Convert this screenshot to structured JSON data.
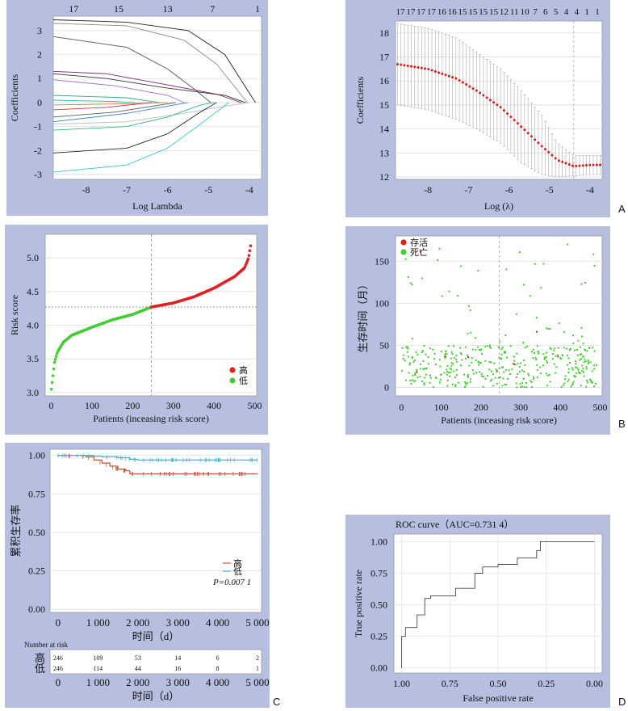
{
  "panel_letters": {
    "a": "A",
    "b": "B",
    "c": "C",
    "d": "D"
  },
  "chart_data": [
    {
      "id": "lasso-path",
      "type": "line",
      "xlabel": "Log Lambda",
      "ylabel": "Coefficients",
      "x_ticks": [
        "-8",
        "-7",
        "-6",
        "-5",
        "-4"
      ],
      "y_ticks": [
        "-3",
        "-2",
        "-1",
        "0",
        "1",
        "2",
        "3"
      ],
      "top_ticks": [
        "17",
        "15",
        "13",
        "7",
        "1"
      ],
      "top_tick_positions": [
        -8.3,
        -7.2,
        -6.0,
        -4.9,
        -3.8
      ],
      "xlim": [
        -8.8,
        -3.7
      ],
      "ylim": [
        -3.2,
        3.6
      ],
      "series": [
        {
          "color": "#222222",
          "values": [
            [
              -8.8,
              3.45
            ],
            [
              -7.0,
              3.35
            ],
            [
              -5.5,
              3.0
            ],
            [
              -4.6,
              2.0
            ],
            [
              -3.85,
              0
            ]
          ]
        },
        {
          "color": "#888888",
          "values": [
            [
              -8.8,
              3.3
            ],
            [
              -7.0,
              3.2
            ],
            [
              -5.6,
              2.6
            ],
            [
              -4.8,
              1.6
            ],
            [
              -4.05,
              0
            ]
          ]
        },
        {
          "color": "#555555",
          "values": [
            [
              -8.8,
              2.75
            ],
            [
              -7.0,
              2.3
            ],
            [
              -6.0,
              1.4
            ],
            [
              -5.3,
              0.5
            ],
            [
              -4.95,
              0
            ]
          ]
        },
        {
          "color": "#7b2a6e",
          "values": [
            [
              -8.8,
              1.3
            ],
            [
              -7.5,
              1.2
            ],
            [
              -6.2,
              0.8
            ],
            [
              -4.8,
              0.35
            ],
            [
              -4.2,
              0
            ]
          ]
        },
        {
          "color": "#333333",
          "values": [
            [
              -8.8,
              1.2
            ],
            [
              -7.5,
              1.0
            ],
            [
              -6.0,
              0.6
            ],
            [
              -4.6,
              0.3
            ],
            [
              -4.1,
              0
            ]
          ]
        },
        {
          "color": "#9f6fc0",
          "values": [
            [
              -8.8,
              0.95
            ],
            [
              -7.3,
              0.7
            ],
            [
              -6.0,
              0.3
            ],
            [
              -5.6,
              0
            ]
          ]
        },
        {
          "color": "#3ea87a",
          "values": [
            [
              -8.8,
              0.3
            ],
            [
              -7.0,
              0.2
            ],
            [
              -6.2,
              0
            ]
          ]
        },
        {
          "color": "#2bb8b8",
          "values": [
            [
              -8.8,
              0.1
            ],
            [
              -7.4,
              0.05
            ],
            [
              -6.8,
              0
            ]
          ]
        },
        {
          "color": "#d08040",
          "values": [
            [
              -8.8,
              -0.1
            ],
            [
              -7.0,
              -0.05
            ],
            [
              -6.0,
              0
            ]
          ]
        },
        {
          "color": "#cc3355",
          "values": [
            [
              -8.8,
              -0.3
            ],
            [
              -7.5,
              -0.2
            ],
            [
              -6.4,
              0
            ]
          ]
        },
        {
          "color": "#5a5a5a",
          "values": [
            [
              -8.8,
              -0.6
            ],
            [
              -7.3,
              -0.4
            ],
            [
              -5.8,
              0
            ]
          ]
        },
        {
          "color": "#3a86c8",
          "values": [
            [
              -8.8,
              -0.8
            ],
            [
              -7.0,
              -0.45
            ],
            [
              -5.5,
              0
            ]
          ]
        },
        {
          "color": "#bbbbbb",
          "values": [
            [
              -8.8,
              -0.9
            ],
            [
              -7.0,
              -0.8
            ],
            [
              -5.8,
              -0.5
            ],
            [
              -4.6,
              -0.15
            ],
            [
              -4.0,
              0
            ]
          ]
        },
        {
          "color": "#2fb59c",
          "values": [
            [
              -8.8,
              -1.15
            ],
            [
              -7.0,
              -1.0
            ],
            [
              -6.0,
              -0.6
            ],
            [
              -5.2,
              -0.1
            ],
            [
              -4.85,
              0
            ]
          ]
        },
        {
          "color": "#222222",
          "values": [
            [
              -8.8,
              -2.1
            ],
            [
              -7.0,
              -1.9
            ],
            [
              -6.0,
              -1.3
            ],
            [
              -5.2,
              -0.4
            ],
            [
              -4.8,
              0
            ]
          ]
        },
        {
          "color": "#38c4c4",
          "values": [
            [
              -8.8,
              -2.9
            ],
            [
              -7.0,
              -2.6
            ],
            [
              -6.0,
              -1.9
            ],
            [
              -5.2,
              -0.9
            ],
            [
              -4.5,
              0
            ]
          ]
        }
      ]
    },
    {
      "id": "cv-curve",
      "type": "scatter",
      "xlabel": "Log (λ)",
      "ylabel": "Coefficients",
      "x_ticks": [
        "-8",
        "-7",
        "-6",
        "-5",
        "-4"
      ],
      "y_ticks": [
        "12",
        "13",
        "14",
        "15",
        "16",
        "17",
        "18"
      ],
      "top_labels": [
        "17",
        "17",
        "17",
        "17",
        "16",
        "16",
        "15",
        "15",
        "15",
        "15",
        "12",
        "11",
        "10",
        "7",
        "6",
        "5",
        "4",
        "4",
        "1",
        "1"
      ],
      "xlim": [
        -8.8,
        -3.7
      ],
      "ylim": [
        11.9,
        18.5
      ],
      "optimal_log_lambda": -4.4,
      "curve_points": [
        [
          -8.75,
          16.7
        ],
        [
          -8.0,
          16.5
        ],
        [
          -7.3,
          16.1
        ],
        [
          -6.8,
          15.6
        ],
        [
          -6.2,
          14.9
        ],
        [
          -5.7,
          14.1
        ],
        [
          -5.2,
          13.3
        ],
        [
          -4.8,
          12.7
        ],
        [
          -4.4,
          12.45
        ],
        [
          -4.0,
          12.5
        ],
        [
          -3.75,
          12.5
        ]
      ],
      "upper_points": [
        [
          -8.75,
          18.4
        ],
        [
          -8.0,
          18.2
        ],
        [
          -7.3,
          17.8
        ],
        [
          -6.8,
          17.2
        ],
        [
          -6.2,
          16.5
        ],
        [
          -5.7,
          15.6
        ],
        [
          -5.2,
          14.6
        ],
        [
          -4.8,
          13.4
        ],
        [
          -4.4,
          12.9
        ],
        [
          -4.0,
          12.9
        ],
        [
          -3.75,
          12.9
        ]
      ],
      "lower_points": [
        [
          -8.75,
          15.0
        ],
        [
          -8.0,
          14.8
        ],
        [
          -7.3,
          14.4
        ],
        [
          -6.8,
          14.0
        ],
        [
          -6.2,
          13.4
        ],
        [
          -5.7,
          12.6
        ],
        [
          -5.2,
          12.1
        ],
        [
          -4.8,
          12.0
        ],
        [
          -4.4,
          12.05
        ],
        [
          -4.0,
          12.1
        ],
        [
          -3.75,
          12.1
        ]
      ],
      "point_color": "#cc2222"
    },
    {
      "id": "risk-score",
      "type": "scatter",
      "xlabel": "Patients (inceasing risk score)",
      "ylabel": "Risk score",
      "x_ticks": [
        "0",
        "100",
        "200",
        "300",
        "400",
        "500"
      ],
      "y_ticks": [
        "3.0",
        "3.5",
        "4.0",
        "4.5",
        "5.0"
      ],
      "xlim": [
        -15,
        505
      ],
      "ylim": [
        2.95,
        5.35
      ],
      "cutoff_patient": 246,
      "cutoff_score": 4.27,
      "n_patients": 492,
      "curve_points": [
        [
          0,
          3.05
        ],
        [
          3,
          3.2
        ],
        [
          8,
          3.45
        ],
        [
          15,
          3.6
        ],
        [
          30,
          3.75
        ],
        [
          50,
          3.85
        ],
        [
          100,
          3.97
        ],
        [
          150,
          4.08
        ],
        [
          200,
          4.16
        ],
        [
          246,
          4.27
        ],
        [
          300,
          4.33
        ],
        [
          350,
          4.42
        ],
        [
          400,
          4.55
        ],
        [
          450,
          4.72
        ],
        [
          475,
          4.85
        ],
        [
          485,
          5.0
        ],
        [
          492,
          5.25
        ]
      ],
      "legend": [
        {
          "label": "高",
          "color": "#dd2222"
        },
        {
          "label": "低",
          "color": "#44cc33"
        }
      ]
    },
    {
      "id": "survival-time",
      "type": "scatter",
      "xlabel": "Patients (inceasing risk score)",
      "ylabel": "生存时间（月）",
      "x_ticks": [
        "0",
        "100",
        "200",
        "300",
        "400",
        "500"
      ],
      "y_ticks": [
        "0",
        "50",
        "100",
        "150"
      ],
      "xlim": [
        -15,
        505
      ],
      "ylim": [
        -10,
        180
      ],
      "cutoff_patient": 246,
      "legend": [
        {
          "label": "存活",
          "color": "#dd2222"
        },
        {
          "label": "死亡",
          "color": "#44cc33"
        }
      ]
    },
    {
      "id": "km-curve",
      "type": "line",
      "xlabel": "时间（d）",
      "ylabel": "累积生存率",
      "x_ticks": [
        "0",
        "1 000",
        "2 000",
        "3 000",
        "4 000",
        "5 000"
      ],
      "y_ticks": [
        "0.00",
        "0.25",
        "0.50",
        "0.75",
        "1.00"
      ],
      "xlim": [
        -200,
        5100
      ],
      "ylim": [
        -0.02,
        1.04
      ],
      "series": [
        {
          "name": "高",
          "color": "#c0553a",
          "values": [
            [
              0,
              1.0
            ],
            [
              700,
              0.99
            ],
            [
              900,
              0.97
            ],
            [
              1100,
              0.95
            ],
            [
              1300,
              0.93
            ],
            [
              1500,
              0.91
            ],
            [
              1700,
              0.9
            ],
            [
              1800,
              0.88
            ],
            [
              5000,
              0.88
            ]
          ]
        },
        {
          "name": "低",
          "color": "#46b3c8",
          "values": [
            [
              0,
              1.0
            ],
            [
              900,
              0.995
            ],
            [
              1100,
              0.99
            ],
            [
              1500,
              0.985
            ],
            [
              1800,
              0.975
            ],
            [
              2000,
              0.97
            ],
            [
              5000,
              0.97
            ]
          ]
        }
      ],
      "p_value": "P=0.007 1",
      "risk_table": {
        "title": "Number at risk",
        "rows": [
          {
            "label": "高",
            "values": [
              "246",
              "109",
              "53",
              "14",
              "6",
              "2"
            ]
          },
          {
            "label": "低",
            "values": [
              "246",
              "114",
              "44",
              "16",
              "8",
              "1"
            ]
          }
        ]
      }
    },
    {
      "id": "roc",
      "type": "line",
      "title": "ROC curve（AUC=0.731 4）",
      "xlabel": "False positive rate",
      "ylabel": "True positive rate",
      "x_ticks": [
        "1.00",
        "0.75",
        "0.50",
        "0.25",
        "0.00"
      ],
      "y_ticks": [
        "0.00",
        "0.25",
        "0.50",
        "0.75",
        "1.00"
      ],
      "xlim": [
        1.04,
        -0.04
      ],
      "ylim": [
        -0.04,
        1.06
      ],
      "auc": 0.7314,
      "roc_points": [
        [
          1.0,
          0.0
        ],
        [
          1.0,
          0.25
        ],
        [
          0.98,
          0.25
        ],
        [
          0.98,
          0.32
        ],
        [
          0.92,
          0.32
        ],
        [
          0.92,
          0.42
        ],
        [
          0.88,
          0.42
        ],
        [
          0.88,
          0.55
        ],
        [
          0.85,
          0.55
        ],
        [
          0.85,
          0.57
        ],
        [
          0.72,
          0.57
        ],
        [
          0.72,
          0.63
        ],
        [
          0.62,
          0.63
        ],
        [
          0.62,
          0.75
        ],
        [
          0.58,
          0.75
        ],
        [
          0.58,
          0.8
        ],
        [
          0.5,
          0.8
        ],
        [
          0.5,
          0.82
        ],
        [
          0.4,
          0.82
        ],
        [
          0.4,
          0.87
        ],
        [
          0.3,
          0.87
        ],
        [
          0.3,
          0.93
        ],
        [
          0.28,
          0.93
        ],
        [
          0.28,
          1.0
        ],
        [
          0.0,
          1.0
        ]
      ]
    }
  ]
}
